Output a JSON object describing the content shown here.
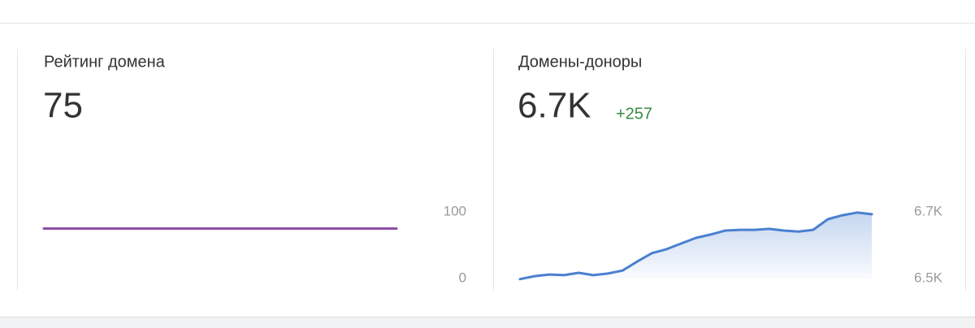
{
  "cards": [
    {
      "title": "Рейтинг домена",
      "value": "75",
      "chart": {
        "type": "line",
        "color": "#8e4ea6",
        "values": [
          75,
          75,
          75,
          75,
          75,
          75,
          75,
          75,
          75,
          75,
          75,
          75,
          75,
          75,
          75,
          75,
          75,
          75,
          75,
          75
        ],
        "ylim": [
          0,
          100
        ],
        "yticks": [
          0,
          100
        ]
      }
    },
    {
      "title": "Домены-доноры",
      "value": "6.7K",
      "delta": "+257",
      "chart": {
        "type": "area",
        "color": "#4a80d0",
        "values": [
          6498,
          6507,
          6512,
          6510,
          6517,
          6510,
          6515,
          6524,
          6551,
          6576,
          6588,
          6605,
          6622,
          6632,
          6644,
          6646,
          6646,
          6649,
          6644,
          6641,
          6646,
          6678,
          6690,
          6698,
          6693
        ],
        "ylim": [
          6500,
          6700
        ],
        "yticks": [
          {
            "value": 6500,
            "label": "6.5K"
          },
          {
            "value": 6700,
            "label": "6.7K"
          }
        ]
      }
    }
  ]
}
